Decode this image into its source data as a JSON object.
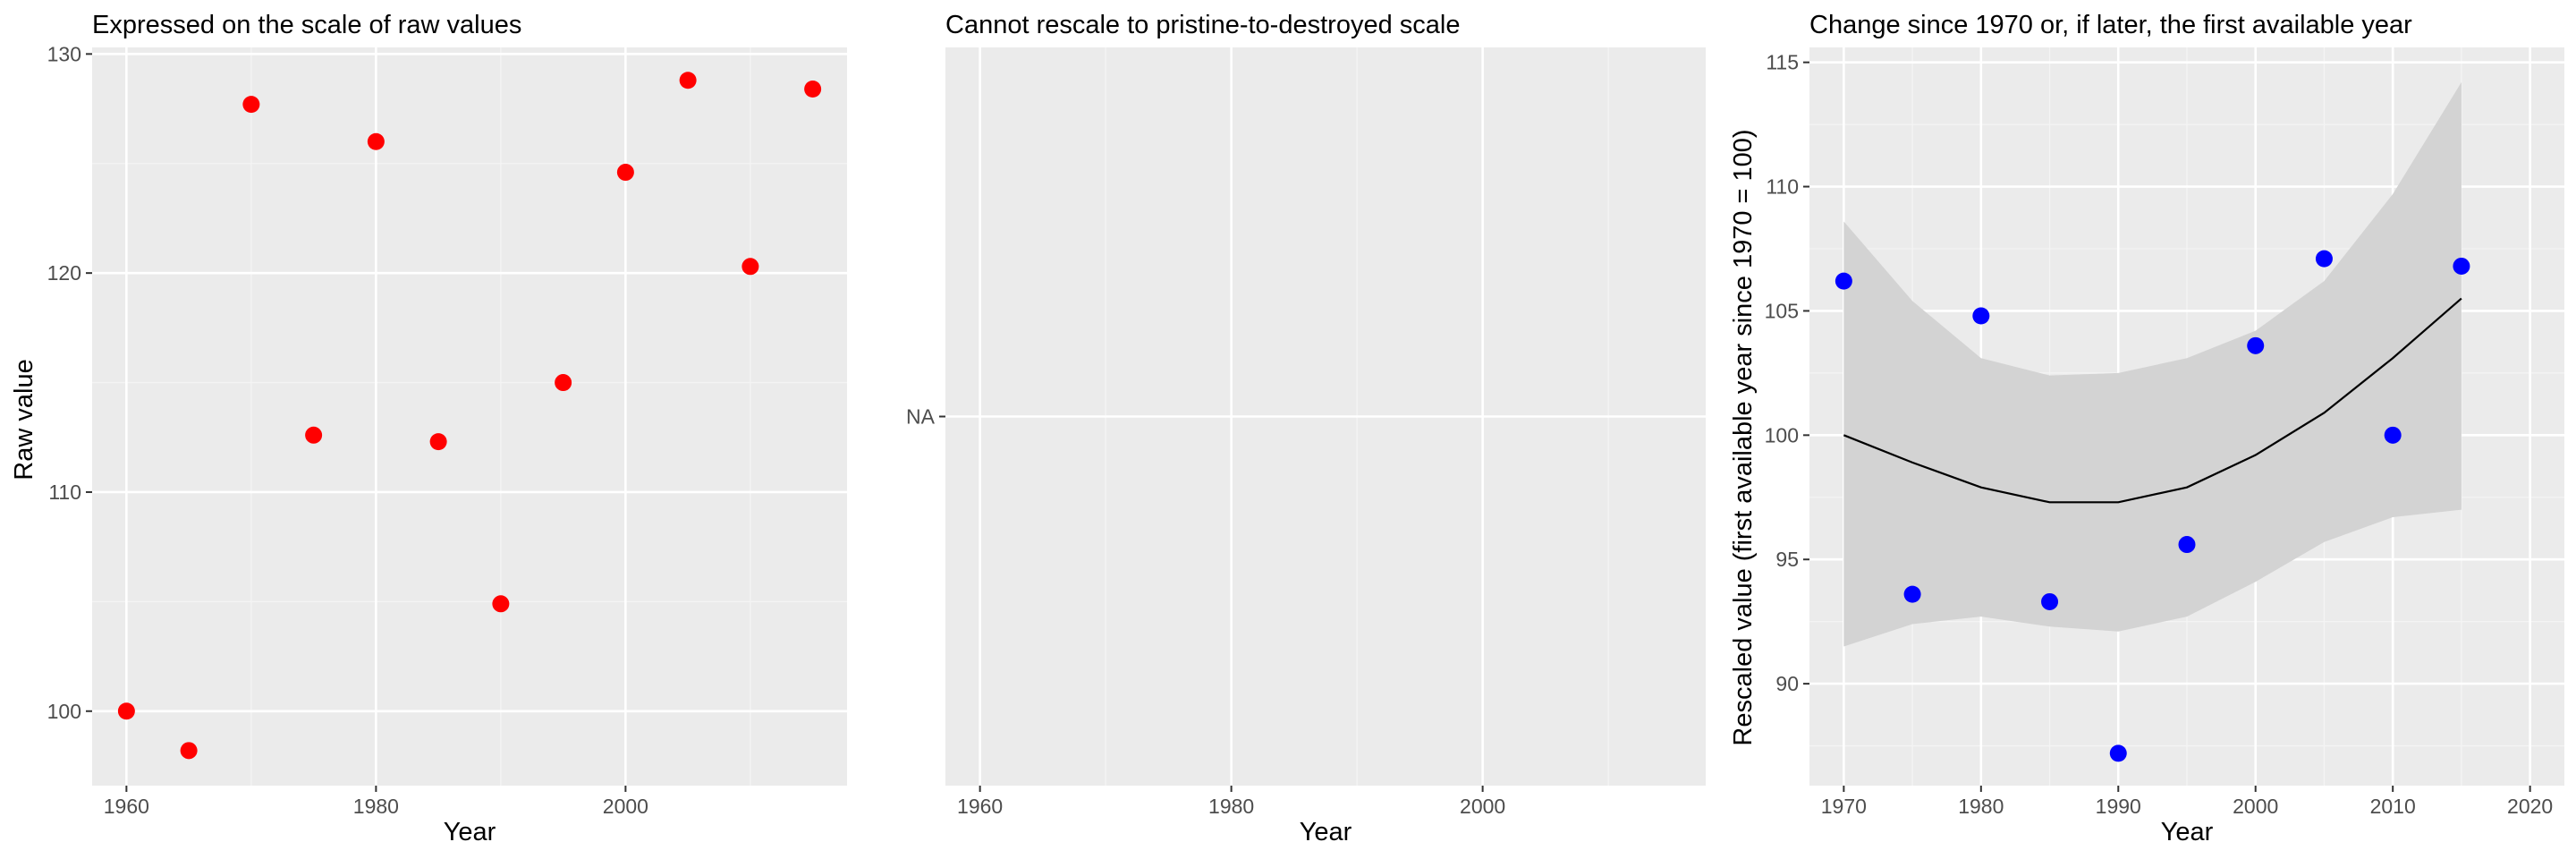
{
  "colors": {
    "panel_background": "#ebebeb",
    "grid_major": "#ffffff",
    "grid_minor": "#f4f4f4",
    "raw_points": "#ff0000",
    "rescaled_points": "#0000ff",
    "fit_line": "#000000",
    "ribbon": "#d3d3d3"
  },
  "chart_data": [
    {
      "type": "scatter",
      "title": "Expressed on the scale of raw values",
      "xlabel": "Year",
      "ylabel": "Raw value",
      "xlim": [
        1957.25,
        2017.75
      ],
      "ylim": [
        96.6,
        130.3
      ],
      "x_ticks": [
        1960,
        1980,
        2000
      ],
      "x_tick_labels": [
        "1960",
        "1980",
        "2000"
      ],
      "y_ticks": [
        100,
        110,
        120,
        130
      ],
      "y_tick_labels": [
        "100",
        "110",
        "120",
        "130"
      ],
      "grid": true,
      "series": [
        {
          "point_color": "red",
          "x": [
            1960,
            1965,
            1970,
            1975,
            1980,
            1985,
            1990,
            1995,
            2000,
            2005,
            2010,
            2015
          ],
          "y": [
            100.0,
            98.2,
            127.7,
            112.6,
            126.0,
            112.3,
            104.9,
            115.0,
            124.6,
            128.8,
            120.3,
            128.4
          ]
        }
      ]
    },
    {
      "type": "scatter",
      "title": "Cannot rescale to pristine-to-destroyed scale",
      "xlabel": "Year",
      "ylabel": "",
      "xlim": [
        1957.25,
        2017.75
      ],
      "x_ticks": [
        1960,
        1980,
        2000
      ],
      "x_tick_labels": [
        "1960",
        "1980",
        "2000"
      ],
      "y_tick_labels": [
        "NA"
      ],
      "grid": true,
      "series": []
    },
    {
      "type": "scatter",
      "title": "Change since 1970 or, if later, the first available year",
      "xlabel": "Year",
      "ylabel": "Rescaled value (first available year since 1970 = 100)",
      "xlim": [
        1967.5,
        2022.5
      ],
      "ylim": [
        85.9,
        115.6
      ],
      "x_ticks": [
        1970,
        1980,
        1990,
        2000,
        2010,
        2020
      ],
      "x_tick_labels": [
        "1970",
        "1980",
        "1990",
        "2000",
        "2010",
        "2020"
      ],
      "y_ticks": [
        90,
        95,
        100,
        105,
        110,
        115
      ],
      "y_tick_labels": [
        "90",
        "95",
        "100",
        "105",
        "110",
        "115"
      ],
      "grid": true,
      "series": [
        {
          "point_color": "blue",
          "x": [
            1970,
            1975,
            1980,
            1985,
            1990,
            1995,
            2000,
            2005,
            2010,
            2015
          ],
          "y": [
            106.2,
            93.6,
            104.8,
            93.3,
            87.2,
            95.6,
            103.6,
            107.1,
            100.0,
            106.8
          ]
        },
        {
          "kind": "smooth",
          "line_color": "black",
          "x": [
            1970,
            1975,
            1980,
            1985,
            1990,
            1995,
            2000,
            2005,
            2010,
            2015
          ],
          "y": [
            100.0,
            98.9,
            97.9,
            97.3,
            97.3,
            97.9,
            99.2,
            100.9,
            103.1,
            105.5
          ],
          "lower": [
            91.5,
            92.4,
            92.7,
            92.3,
            92.1,
            92.7,
            94.1,
            95.7,
            96.7,
            97.0
          ],
          "upper": [
            108.6,
            105.4,
            103.1,
            102.4,
            102.5,
            103.1,
            104.2,
            106.2,
            109.7,
            114.2
          ]
        }
      ]
    }
  ]
}
